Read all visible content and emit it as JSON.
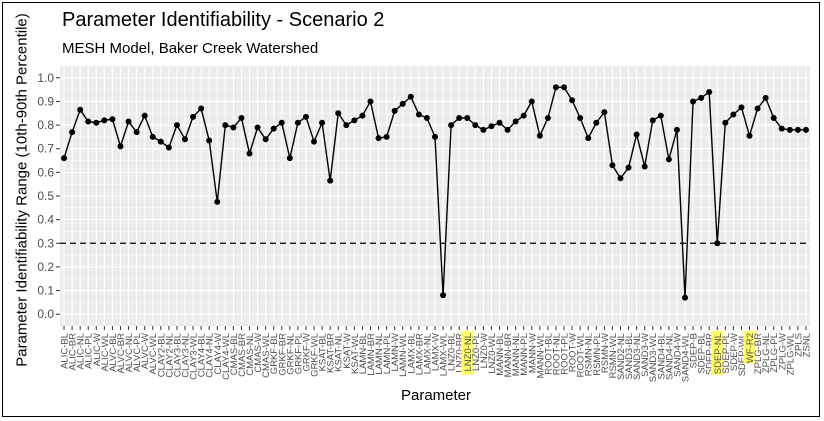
{
  "chart_data": {
    "type": "line",
    "title": "Parameter Identifiability - Scenario 2",
    "subtitle": "MESH Model, Baker Creek Watershed",
    "xlabel": "Parameter",
    "ylabel": "Parameter Identifiability Range (10th-90th Percentile)",
    "ylim": [
      -0.05,
      1.05
    ],
    "yticks": [
      0.0,
      0.1,
      0.2,
      0.3,
      0.4,
      0.5,
      0.6,
      0.7,
      0.8,
      0.9,
      1.0
    ],
    "ytick_labels": [
      "0.0",
      "0.1",
      "0.2",
      "0.3",
      "0.4",
      "0.5",
      "0.6",
      "0.7",
      "0.8",
      "0.9",
      "1.0"
    ],
    "grid": true,
    "reference_line": {
      "y": 0.3,
      "style": "dashed"
    },
    "highlighted_categories": [
      "LNZ0-NL",
      "SDEP-NL",
      "WF-R2"
    ],
    "colors": {
      "panel": "#ebebeb",
      "grid": "#ffffff",
      "line": "#000000",
      "highlight": "#ffff66",
      "tick_text": "#4d4d4d"
    },
    "categories": [
      "ALIC-BL",
      "ALIC-BR",
      "ALIC-NL",
      "ALIC-PL",
      "ALIC-W",
      "ALIC-WL",
      "ALVC-BL",
      "ALVC-BR",
      "ALVC-NL",
      "ALVC-PL",
      "ALVC-W",
      "ALVC-WL",
      "CLAY2-BL",
      "CLAY2-NL",
      "CLAY3-BL",
      "CLAY3-NL",
      "CLAY3-WL",
      "CLAY4-BL",
      "CLAY4-NL",
      "CLAY4-W",
      "CLAY4-WL",
      "CMAS-BL",
      "CMAS-BR",
      "CMAS-NL",
      "CMAS-W",
      "CMAS-WL",
      "GRKF-BL",
      "GRKF-BR",
      "GRKF-NL",
      "GRKF-PL",
      "GRKF-W",
      "GRKF-WL",
      "KSAT-BL",
      "KSAT-BR",
      "KSAT-NL",
      "KSAT-W",
      "KSAT-WL",
      "LAMN-BL",
      "LAMN-BR",
      "LAMN-NL",
      "LAMN-PL",
      "LAMN-W",
      "LAMN-WL",
      "LAMX-BL",
      "LAMX-BR",
      "LAMX-NL",
      "LAMX-W",
      "LAMX-WL",
      "LNZ0-BL",
      "LNZ0-BR",
      "LNZ0-NL",
      "LNZ0-PL",
      "LNZ0-W",
      "LNZ0-WL",
      "MANN-BL",
      "MANN-BR",
      "MANN-NL",
      "MANN-PL",
      "MANN-W",
      "MANN-WL",
      "ROOT-BL",
      "ROOT-NL",
      "ROOT-PL",
      "ROOT-W",
      "ROOT-WL",
      "RSMN-NL",
      "RSMN-PL",
      "RSMN-W",
      "RSMN-WL",
      "SAND2-NL",
      "SAND3-BL",
      "SAND3-NL",
      "SAND3-W",
      "SAND3-WL",
      "SAND4-BL",
      "SAND4-NL",
      "SAND4-W",
      "SAND4-WL",
      "SDEP-B",
      "SDEP-BL",
      "SDEP-BR",
      "SDEP-NL",
      "SDEP-PL",
      "SDEP-W",
      "SDEP-WL",
      "WF-R2",
      "ZPLG-BR",
      "ZPLG-NL",
      "ZPLG-PL",
      "ZPLG-W",
      "ZPLG-WL",
      "ZPLS",
      "ZSNL"
    ],
    "values": [
      0.66,
      0.77,
      0.865,
      0.815,
      0.81,
      0.82,
      0.825,
      0.71,
      0.815,
      0.77,
      0.84,
      0.75,
      0.73,
      0.705,
      0.8,
      0.74,
      0.835,
      0.87,
      0.735,
      0.475,
      0.8,
      0.79,
      0.83,
      0.68,
      0.79,
      0.74,
      0.785,
      0.81,
      0.66,
      0.81,
      0.835,
      0.73,
      0.81,
      0.565,
      0.85,
      0.8,
      0.82,
      0.84,
      0.9,
      0.745,
      0.75,
      0.86,
      0.89,
      0.92,
      0.845,
      0.83,
      0.75,
      0.08,
      0.8,
      0.83,
      0.83,
      0.8,
      0.78,
      0.795,
      0.81,
      0.78,
      0.815,
      0.84,
      0.9,
      0.755,
      0.83,
      0.96,
      0.96,
      0.905,
      0.83,
      0.745,
      0.81,
      0.855,
      0.63,
      0.575,
      0.62,
      0.76,
      0.625,
      0.82,
      0.84,
      0.655,
      0.78,
      0.07,
      0.9,
      0.915,
      0.94,
      0.3,
      0.81,
      0.845,
      0.875,
      0.755,
      0.87,
      0.915,
      0.83,
      0.785,
      0.78,
      0.78,
      0.78
    ]
  }
}
